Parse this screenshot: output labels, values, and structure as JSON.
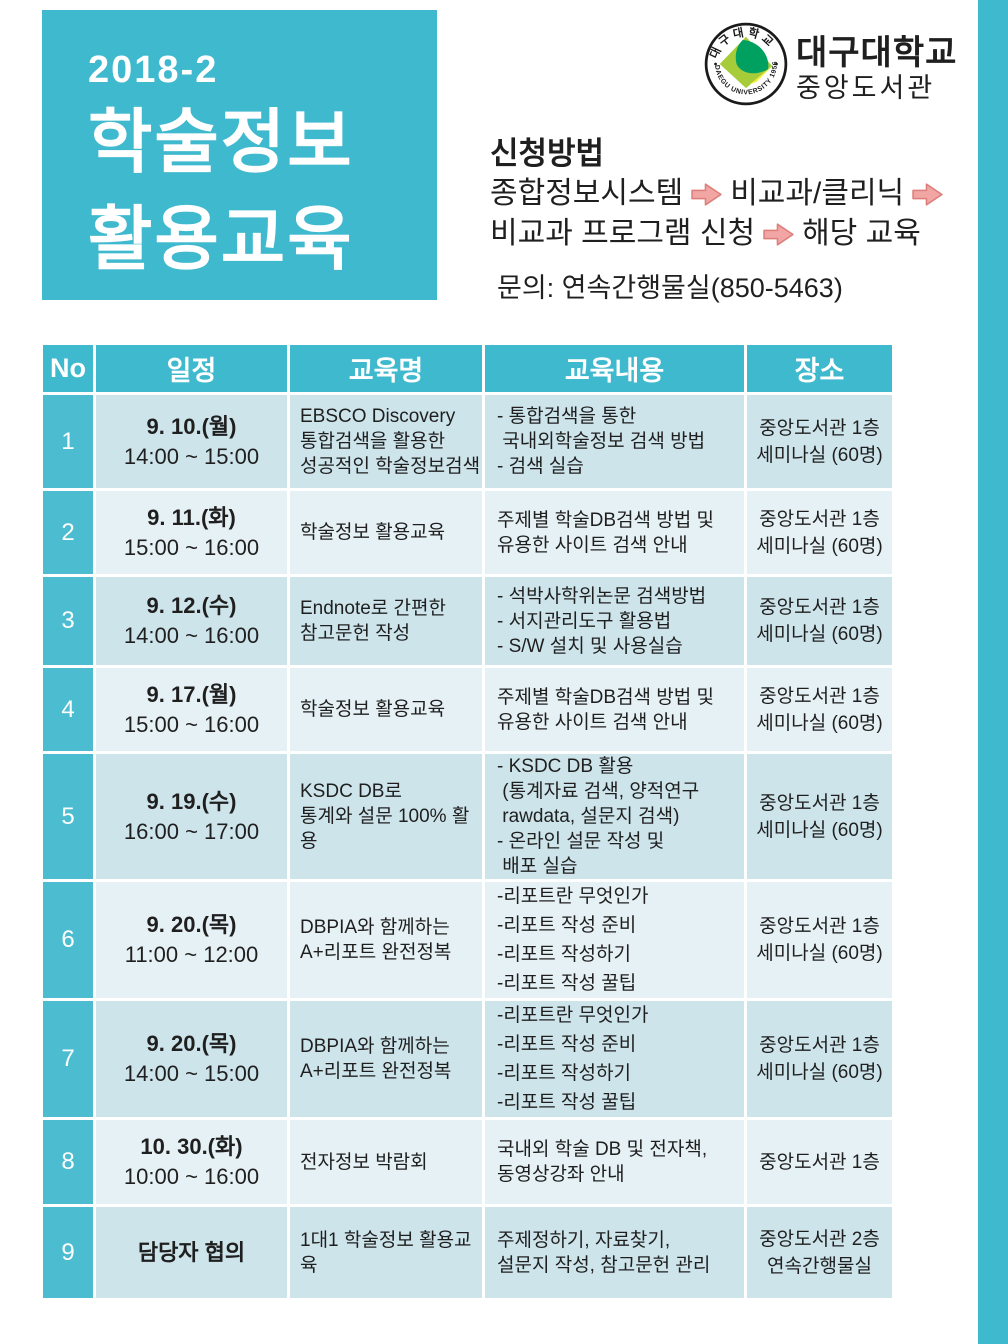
{
  "colors": {
    "accent_teal": "#3fb9ce",
    "no_column_teal": "#4cbdd0",
    "row_odd_blue": "#cde4eb",
    "row_even_blue": "#e6f1f5",
    "arrow_pink_fill": "#f1a6a4",
    "arrow_pink_stroke": "#dd7e7b"
  },
  "title_block": {
    "semester": "2018-2",
    "line1": "학술정보",
    "line2": "활용교육"
  },
  "logo": {
    "seal_top_text": "대구대학교",
    "seal_bottom_text": "DAEGU UNIVERSITY 1956",
    "university": "대구대학교",
    "library": "중앙도서관"
  },
  "application": {
    "heading": "신청방법",
    "step1": "종합정보시스템",
    "step2": "비교과/클리닉",
    "step3": "비교과 프로그램 신청",
    "step4": "해당 교육",
    "contact": "문의: 연속간행물실(850-5463)"
  },
  "table": {
    "headers": [
      "No",
      "일정",
      "교육명",
      "교육내용",
      "장소"
    ],
    "rows": [
      {
        "no": "1",
        "date": "9. 10.(월)",
        "time": "14:00 ~ 15:00",
        "name": [
          "EBSCO Discovery",
          "통합검색을 활용한",
          "성공적인 학술정보검색"
        ],
        "content": [
          "- 통합검색을 통한",
          " 국내외학술정보 검색 방법",
          "- 검색 실습"
        ],
        "place": [
          "중앙도서관 1층",
          "세미나실 (60명)"
        ]
      },
      {
        "no": "2",
        "date": "9. 11.(화)",
        "time": "15:00 ~ 16:00",
        "name": [
          "학술정보 활용교육"
        ],
        "content": [
          "주제별 학술DB검색 방법 및",
          "유용한 사이트 검색 안내"
        ],
        "place": [
          "중앙도서관 1층",
          "세미나실 (60명)"
        ]
      },
      {
        "no": "3",
        "date": "9. 12.(수)",
        "time": "14:00 ~ 16:00",
        "name": [
          "Endnote로 간편한",
          "참고문헌 작성"
        ],
        "content": [
          "- 석박사학위논문 검색방법",
          "- 서지관리도구 활용법",
          "- S/W 설치 및 사용실습"
        ],
        "place": [
          "중앙도서관 1층",
          "세미나실 (60명)"
        ]
      },
      {
        "no": "4",
        "date": "9. 17.(월)",
        "time": "15:00 ~ 16:00",
        "name": [
          "학술정보 활용교육"
        ],
        "content": [
          "주제별 학술DB검색 방법 및",
          "유용한 사이트 검색 안내"
        ],
        "place": [
          "중앙도서관 1층",
          "세미나실 (60명)"
        ]
      },
      {
        "no": "5",
        "date": "9. 19.(수)",
        "time": "16:00 ~ 17:00",
        "name": [
          "KSDC DB로",
          "통계와 설문 100% 활용"
        ],
        "content": [
          "- KSDC DB 활용",
          " (통계자료 검색, 양적연구",
          " rawdata, 설문지 검색)",
          "- 온라인 설문 작성 및",
          " 배포 실습"
        ],
        "place": [
          "중앙도서관 1층",
          "세미나실 (60명)"
        ]
      },
      {
        "no": "6",
        "date": "9. 20.(목)",
        "time": "11:00 ~ 12:00",
        "name": [
          "DBPIA와 함께하는",
          "A+리포트 완전정복"
        ],
        "content": [
          "-리포트란 무엇인가",
          "-리포트 작성 준비",
          "-리포트 작성하기",
          "-리포트 작성 꿀팁"
        ],
        "place": [
          "중앙도서관 1층",
          "세미나실 (60명)"
        ]
      },
      {
        "no": "7",
        "date": "9. 20.(목)",
        "time": "14:00 ~ 15:00",
        "name": [
          "DBPIA와 함께하는",
          "A+리포트 완전정복"
        ],
        "content": [
          "-리포트란 무엇인가",
          "-리포트 작성 준비",
          "-리포트 작성하기",
          "-리포트 작성 꿀팁"
        ],
        "place": [
          "중앙도서관 1층",
          "세미나실 (60명)"
        ]
      },
      {
        "no": "8",
        "date": "10. 30.(화)",
        "time": "10:00 ~ 16:00",
        "name": [
          "전자정보 박람회"
        ],
        "content": [
          "국내외 학술 DB 및 전자책,",
          "동영상강좌 안내"
        ],
        "place": [
          "중앙도서관 1층"
        ]
      },
      {
        "no": "9",
        "date": "담당자 협의",
        "time": "",
        "name": [
          "1대1 학술정보 활용교육"
        ],
        "content": [
          "주제정하기, 자료찾기,",
          "설문지 작성, 참고문헌 관리"
        ],
        "place": [
          "중앙도서관 2층",
          "연속간행물실"
        ]
      }
    ]
  }
}
